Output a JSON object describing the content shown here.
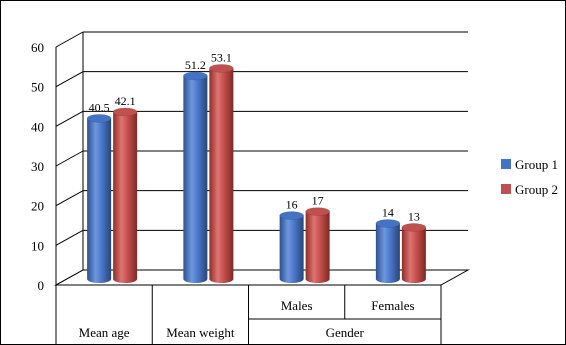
{
  "chart_data": {
    "type": "bar",
    "categories": [
      "Mean age",
      "Mean weight",
      "Males",
      "Females"
    ],
    "group_label": "Gender",
    "series": [
      {
        "name": "Group 1",
        "values": [
          40.5,
          51.2,
          16,
          14
        ],
        "color": "#4472c4"
      },
      {
        "name": "Group 2",
        "values": [
          42.1,
          53.1,
          17,
          13
        ],
        "color": "#c0504d"
      }
    ],
    "data_labels": [
      [
        "40.5",
        "51.2",
        "16",
        "14"
      ],
      [
        "42.1",
        "53.1",
        "17",
        "13"
      ]
    ],
    "y_ticks": [
      "0",
      "10",
      "20",
      "30",
      "40",
      "50",
      "60"
    ],
    "ylim": [
      0,
      60
    ],
    "grid": true,
    "legend_position": "right",
    "style": "3d-cylinder"
  }
}
